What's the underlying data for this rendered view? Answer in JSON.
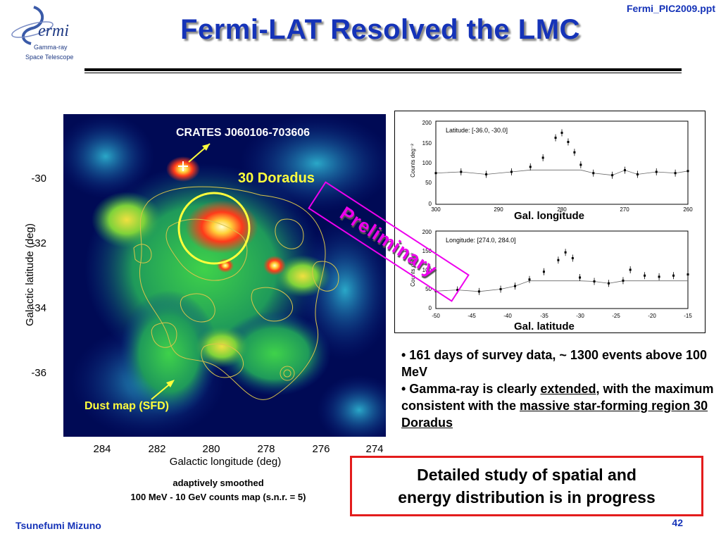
{
  "header": {
    "logo_text_1": "ermi",
    "logo_text_2": "Gamma-ray",
    "logo_text_3": "Space Telescope",
    "title": "Fermi-LAT Resolved the LMC",
    "file_ref": "Fermi_PIC2009.ppt"
  },
  "map": {
    "annotations": {
      "crates": "CRATES J060106-703606",
      "doradus": "30 Doradus",
      "dust": "Dust map (SFD)"
    },
    "y_axis": {
      "label": "Galactic latitude (deg)",
      "ticks": [
        "-30",
        "-32",
        "-34",
        "-36"
      ]
    },
    "x_axis": {
      "label": "Galactic longitude (deg)",
      "ticks": [
        "284",
        "282",
        "280",
        "278",
        "276",
        "274"
      ]
    },
    "caption_line1": "adaptively smoothed",
    "caption_line2": "100 MeV - 10 GeV counts map (s.n.r. = 5)",
    "colors": {
      "background": "#000a55",
      "contour": "#d9c44a",
      "circle": "#ffff3c"
    }
  },
  "profiles": {
    "top": {
      "legend": "Latitude: [-36.0, -30.0]",
      "ylabel": "Counts deg⁻²",
      "yticks": [
        "200",
        "150",
        "100",
        "50",
        "0"
      ],
      "xticks": [
        "300",
        "290",
        "280",
        "270",
        "260"
      ],
      "xlabel": "Gal. longitude"
    },
    "bottom": {
      "legend": "Longitude: [274.0, 284.0]",
      "ylabel": "Counts deg⁻²",
      "yticks": [
        "200",
        "150",
        "100",
        "50",
        "0"
      ],
      "xticks": [
        "-50",
        "-45",
        "-40",
        "-35",
        "-30",
        "-25",
        "-20",
        "-15"
      ],
      "xlabel": "Gal. latitude"
    },
    "stamp": "Preliminary"
  },
  "chart_data": [
    {
      "type": "scatter",
      "legend": "Latitude: [-36.0, -30.0]",
      "xlabel": "Gal. longitude",
      "ylabel": "Counts deg⁻²",
      "xlim": [
        300,
        260
      ],
      "ylim": [
        0,
        200
      ],
      "x": [
        300,
        296,
        292,
        288,
        285,
        283,
        281,
        280,
        279,
        278,
        277,
        275,
        272,
        270,
        268,
        265,
        262,
        260
      ],
      "y": [
        75,
        78,
        72,
        78,
        90,
        112,
        160,
        172,
        150,
        125,
        95,
        75,
        70,
        82,
        72,
        78,
        75,
        80
      ],
      "model_note": "smooth model curve overlaid"
    },
    {
      "type": "scatter",
      "legend": "Longitude: [274.0, 284.0]",
      "xlabel": "Gal. latitude",
      "ylabel": "Counts deg⁻²",
      "xlim": [
        -50,
        -15
      ],
      "ylim": [
        0,
        200
      ],
      "x": [
        -50,
        -47,
        -44,
        -41,
        -39,
        -37,
        -35,
        -33,
        -32,
        -31,
        -30,
        -28,
        -26,
        -24,
        -23,
        -21,
        -19,
        -17,
        -15
      ],
      "y": [
        45,
        48,
        44,
        50,
        58,
        75,
        95,
        125,
        145,
        130,
        80,
        70,
        65,
        72,
        100,
        85,
        82,
        85,
        88
      ]
    }
  ],
  "bullets": {
    "b1": "• 161 days of survey data, ~ 1300 events above 100 MeV",
    "b2_pre": "• Gamma-ray is clearly ",
    "b2_u1": "extended",
    "b2_mid": ", with the maximum consistent with the ",
    "b2_u2": "massive star-forming region 30 Doradus"
  },
  "box": {
    "line1": "Detailed study of spatial and",
    "line2": "energy distribution is in progress",
    "border_color": "#e31c1c"
  },
  "footer": {
    "author": "Tsunefumi Mizuno",
    "page": "42"
  }
}
